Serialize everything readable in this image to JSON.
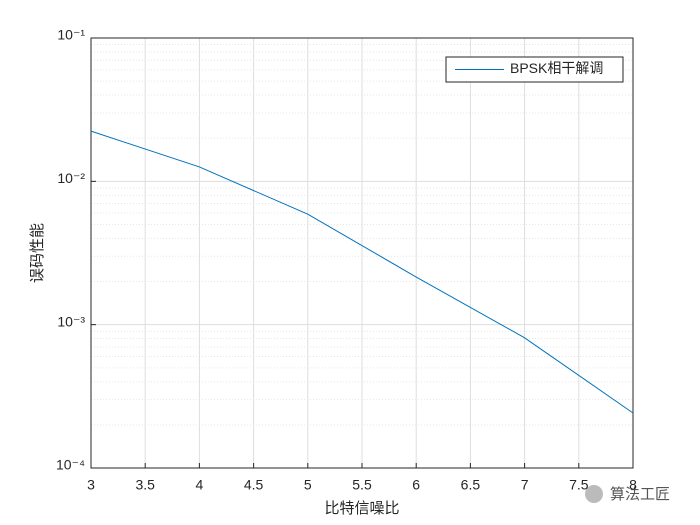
{
  "chart_data": {
    "type": "line",
    "x_label": "比特信噪比",
    "y_label": "误码性能",
    "x": [
      3,
      4,
      5,
      6,
      7,
      8
    ],
    "series": [
      {
        "name": "BPSK相干解调",
        "color": "#0072bd",
        "values": [
          0.0224,
          0.0126,
          0.0059,
          0.00215,
          0.00081,
          0.000242
        ]
      }
    ],
    "xlim": [
      3,
      8
    ],
    "xticks": [
      3,
      3.5,
      4,
      4.5,
      5,
      5.5,
      6,
      6.5,
      7,
      7.5,
      8
    ],
    "ylim": [
      0.0001,
      0.1
    ],
    "y_scale": "log",
    "yticks": [
      {
        "value": 0.0001,
        "label": "10⁻⁴"
      },
      {
        "value": 0.001,
        "label": "10⁻³"
      },
      {
        "value": 0.01,
        "label": "10⁻²"
      },
      {
        "value": 0.1,
        "label": "10⁻¹"
      }
    ],
    "grid": true,
    "minor_grid": true,
    "legend_position": "upper right",
    "watermark": "算法工匠"
  }
}
